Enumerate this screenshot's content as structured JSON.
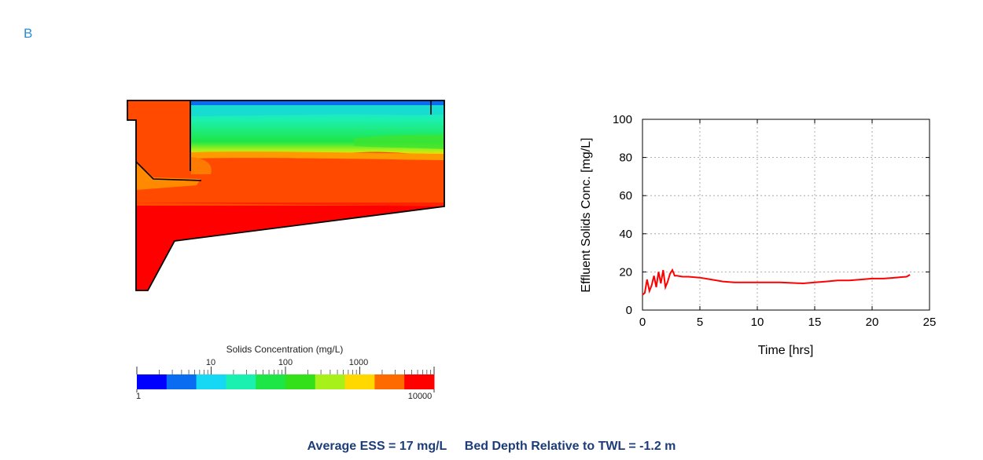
{
  "panel_label": "B",
  "colorbar": {
    "title": "Solids Concentration (mg/L)",
    "ticks_top": [
      "10",
      "100",
      "1000"
    ],
    "tick_min": "1",
    "tick_max": "10000",
    "colors": [
      "#0000ff",
      "#0a6cf0",
      "#16d8f4",
      "#1cf0b0",
      "#1ee646",
      "#34e01a",
      "#a8f01a",
      "#ffd800",
      "#ff6a00",
      "#ff0000"
    ]
  },
  "chart_data": {
    "type": "line",
    "xlabel": "Time [hrs]",
    "ylabel": "Effluent Solids Conc. [mg/L]",
    "xlim": [
      0,
      25
    ],
    "ylim": [
      0,
      100
    ],
    "xticks": [
      0,
      5,
      10,
      15,
      20,
      25
    ],
    "yticks": [
      0,
      20,
      40,
      60,
      80,
      100
    ],
    "grid": true,
    "series": [
      {
        "color": "#ff0000",
        "x": [
          0,
          0.2,
          0.4,
          0.6,
          0.8,
          1.0,
          1.2,
          1.4,
          1.6,
          1.8,
          2.0,
          2.2,
          2.4,
          2.6,
          2.8,
          3.0,
          3.5,
          4.0,
          5.0,
          6.0,
          7.0,
          8.0,
          10.0,
          12.0,
          14.0,
          15.0,
          16.0,
          17.0,
          18.0,
          19.0,
          20.0,
          21.0,
          22.0,
          23.0,
          23.3
        ],
        "y": [
          8,
          9,
          16,
          10,
          13,
          18,
          12,
          20,
          14,
          21,
          12,
          15,
          19,
          21,
          18,
          18,
          17.5,
          17.5,
          17,
          16,
          15,
          14.5,
          14.5,
          14.5,
          14,
          14.5,
          15,
          15.5,
          15.5,
          16,
          16.5,
          16.5,
          17,
          17.5,
          18.5
        ]
      }
    ]
  },
  "summary": {
    "ess": "Average ESS = 17 mg/L",
    "bed": "Bed Depth Relative to TWL = -1.2 m"
  }
}
